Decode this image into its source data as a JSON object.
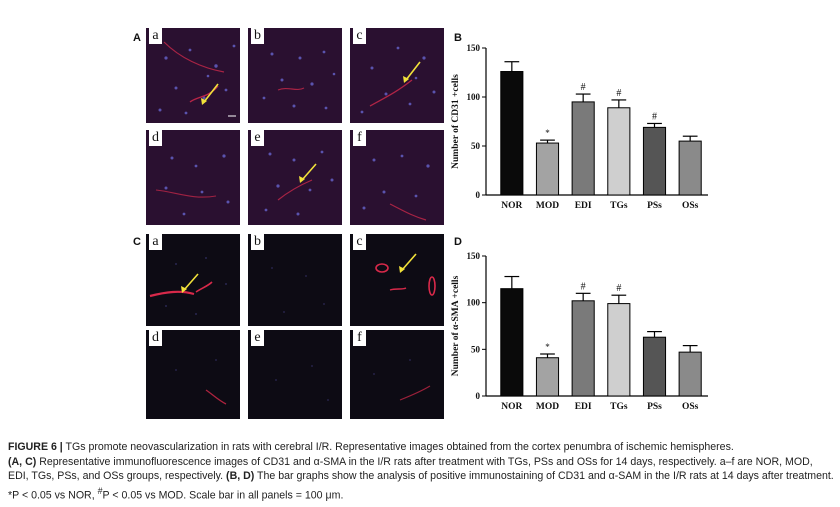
{
  "panels": {
    "A": "A",
    "B": "B",
    "C": "C",
    "D": "D",
    "A_sub": [
      "a",
      "b",
      "c",
      "d",
      "e",
      "f"
    ],
    "C_sub": [
      "a",
      "b",
      "c",
      "d",
      "e",
      "f"
    ]
  },
  "colors": {
    "nor": "#0a0a0a",
    "mod": "#a3a3a3",
    "edi": "#7a7a7a",
    "tgs": "#cfcfcf",
    "pss": "#555555",
    "oss": "#8a8a8a",
    "arrow": "#f2e23a",
    "vessel": "#d8294a"
  },
  "chart_data": [
    {
      "type": "bar",
      "categories": [
        "NOR",
        "MOD",
        "EDI",
        "TGs",
        "PSs",
        "OSs"
      ],
      "values": [
        126,
        53,
        95,
        89,
        69,
        55
      ],
      "errors": [
        10,
        3,
        8,
        8,
        4,
        5
      ],
      "markers": [
        "",
        "*",
        "#",
        "#",
        "#",
        ""
      ],
      "ylabel": "Number of CD31 +cells",
      "ylim": [
        0,
        150
      ],
      "yticks": [
        "0",
        "50",
        "100",
        "150"
      ],
      "grid": false
    },
    {
      "type": "bar",
      "categories": [
        "NOR",
        "MOD",
        "EDI",
        "TGs",
        "PSs",
        "OSs"
      ],
      "values": [
        115,
        41,
        102,
        99,
        63,
        47
      ],
      "errors": [
        13,
        4,
        8,
        9,
        6,
        7
      ],
      "markers": [
        "",
        "*",
        "#",
        "#",
        "",
        ""
      ],
      "ylabel": "Number of α-SMA +cells",
      "ylim": [
        0,
        150
      ],
      "yticks": [
        "0",
        "50",
        "100",
        "150"
      ],
      "grid": false
    }
  ],
  "caption": {
    "figure_label": "FIGURE 6 |",
    "line1": " TGs promote neovascularization in rats with cerebral I/R. Representative images obtained from the cortex penumbra of ischemic hemispheres.",
    "ac_label": "(A, C)",
    "line2": " Representative immunofluorescence images of CD31 and α-SMA in the I/R rats after treatment with TGs, PSs and OSs for 14 days, respectively. a–f are NOR, MOD, EDI, TGs, PSs, and OSs groups, respectively. ",
    "bd_label": "(B, D)",
    "line3": " The bar graphs show the analysis of positive immunostaining of CD31 and α-SAM in the I/R rats at 14 days after treatment. ",
    "stat1": "*P < 0.05 vs NOR, ",
    "hash": "#",
    "stat2": "P < 0.05 vs MOD. Scale bar in all panels = 100 μm."
  }
}
